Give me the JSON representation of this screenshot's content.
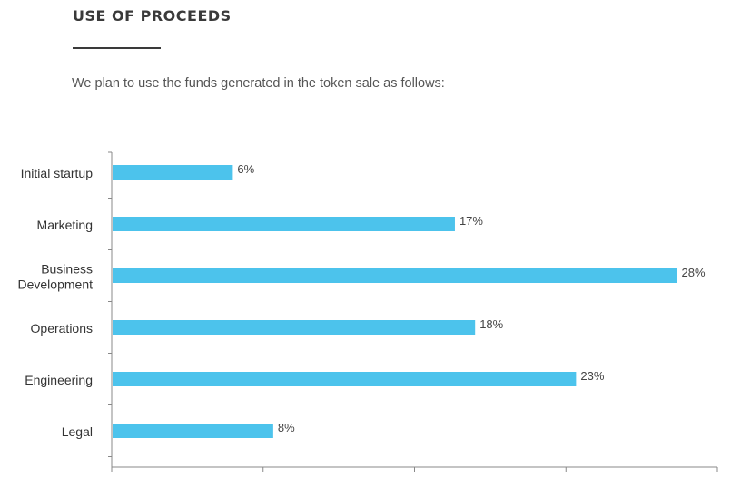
{
  "header": {
    "title": "USE OF PROCEEDS",
    "intro": "We plan to use the funds generated in the token sale as follows:"
  },
  "chart_data": {
    "type": "bar",
    "orientation": "horizontal",
    "categories": [
      [
        "Initial startup"
      ],
      [
        "Marketing"
      ],
      [
        "Business",
        "Development"
      ],
      [
        "Operations"
      ],
      [
        "Engineering"
      ],
      [
        "Legal"
      ]
    ],
    "values": [
      6,
      17,
      28,
      18,
      23,
      8
    ],
    "value_labels": [
      "6%",
      "17%",
      "28%",
      "18%",
      "23%",
      "8%"
    ],
    "xlim": [
      0,
      30
    ],
    "x_ticks": [
      0,
      7.5,
      15,
      22.5,
      30
    ],
    "grid": false,
    "bar_color": "#4cc3ec"
  }
}
